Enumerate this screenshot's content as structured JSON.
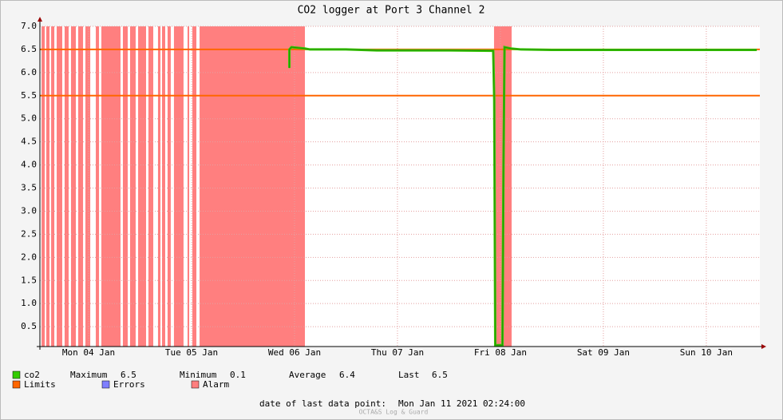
{
  "chart_data": {
    "type": "line",
    "title": "CO2 logger at Port 3 Channel 2",
    "xlim": [
      0.027,
      7.02
    ],
    "xticks": [
      {
        "value": 0.5,
        "label": "Mon 04 Jan"
      },
      {
        "value": 1.5,
        "label": "Tue 05 Jan"
      },
      {
        "value": 2.5,
        "label": "Wed 06 Jan"
      },
      {
        "value": 3.5,
        "label": "Thu 07 Jan"
      },
      {
        "value": 4.5,
        "label": "Fri 08 Jan"
      },
      {
        "value": 5.5,
        "label": "Sat 09 Jan"
      },
      {
        "value": 6.5,
        "label": "Sun 10 Jan"
      }
    ],
    "ylim": [
      0.07,
      7.0
    ],
    "yticks": [
      0.5,
      {
        "value": 1,
        "label": "1.0"
      },
      1.5,
      {
        "value": 2,
        "label": "2.0"
      },
      2.5,
      {
        "value": 3,
        "label": "3.0"
      },
      3.5,
      {
        "value": 4,
        "label": "4.0"
      },
      4.5,
      {
        "value": 5,
        "label": "5.0"
      },
      5.5,
      {
        "value": 6,
        "label": "6.0"
      },
      6.5,
      {
        "value": 7,
        "label": "7.0"
      }
    ],
    "grid": true,
    "x": [
      2.45,
      2.45,
      2.47,
      2.6,
      2.65,
      3.0,
      3.3,
      4.0,
      4.43,
      4.44,
      4.45,
      4.52,
      4.53,
      4.54,
      4.6,
      4.7,
      5.0,
      6.0,
      6.99
    ],
    "series": [
      {
        "name": "co2",
        "color": "#33cc00",
        "values": [
          6.1,
          6.5,
          6.55,
          6.52,
          6.5,
          6.5,
          6.48,
          6.48,
          6.47,
          5.4,
          0.1,
          0.1,
          4.0,
          6.55,
          6.52,
          6.5,
          6.49,
          6.49,
          6.49
        ]
      }
    ],
    "limits": {
      "name": "Limits",
      "color": "#ff6600",
      "values": [
        6.5,
        5.5
      ]
    },
    "errors": {
      "name": "Errors",
      "color": "#7f7fff"
    },
    "alarm": {
      "name": "Alarm",
      "color": "#ff7f7f",
      "intervals": [
        [
          0.043,
          0.074
        ],
        [
          0.089,
          0.12
        ],
        [
          0.136,
          0.167
        ],
        [
          0.19,
          0.244
        ],
        [
          0.267,
          0.306
        ],
        [
          0.329,
          0.376
        ],
        [
          0.399,
          0.446
        ],
        [
          0.469,
          0.516
        ],
        [
          0.57,
          0.601
        ],
        [
          0.624,
          0.81
        ],
        [
          0.833,
          0.88
        ],
        [
          0.903,
          0.957
        ],
        [
          0.981,
          1.058
        ],
        [
          1.081,
          1.128
        ],
        [
          1.174,
          1.198
        ],
        [
          1.213,
          1.244
        ],
        [
          1.267,
          1.298
        ],
        [
          1.329,
          1.422
        ],
        [
          1.461,
          1.477
        ],
        [
          1.508,
          1.547
        ],
        [
          1.578,
          2.601
        ],
        [
          4.438,
          4.609
        ]
      ]
    },
    "stats": [
      {
        "label": "Maximum",
        "value": 6.5
      },
      {
        "label": "Minimum",
        "value": 0.1
      },
      {
        "label": "Average",
        "value": 6.4
      },
      {
        "label": "Last",
        "value": 6.5
      }
    ],
    "footer": {
      "label": "date of last data point:",
      "value": "Mon Jan 11 2021 02:24:00"
    },
    "watermark": "OCTA&S Log & Guard"
  }
}
